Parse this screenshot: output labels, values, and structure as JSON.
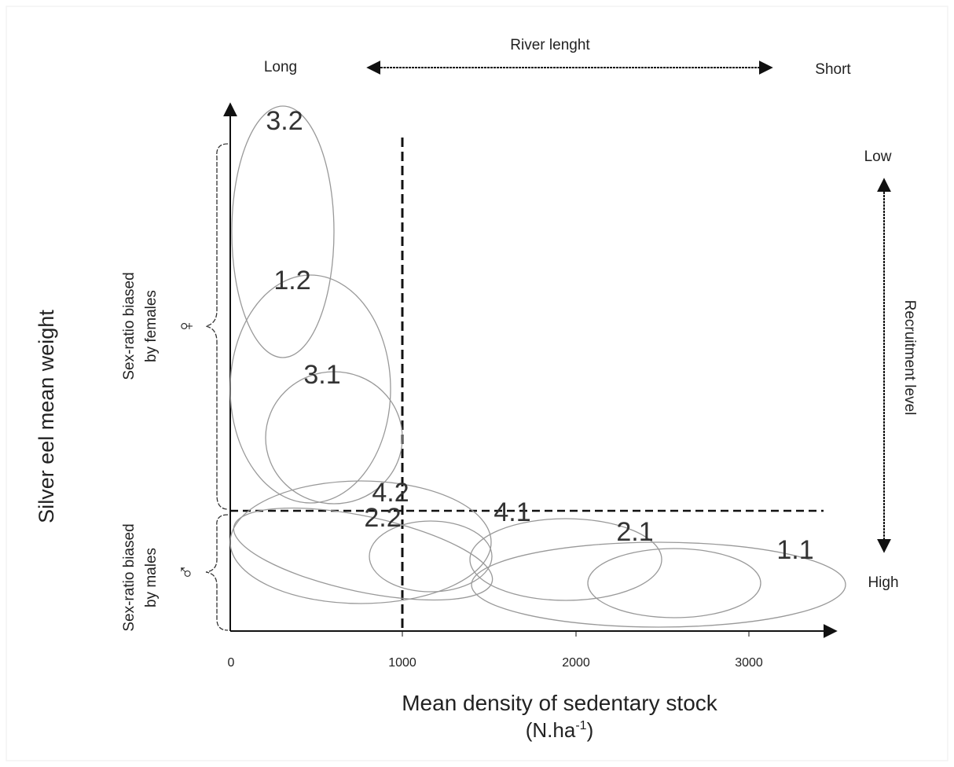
{
  "top_axis": {
    "title": "River lenght",
    "left": "Long",
    "right": "Short"
  },
  "right_axis": {
    "title": "Recruitment level",
    "top": "Low",
    "bottom": "High"
  },
  "y_axis": {
    "title": "Silver eel mean weight",
    "upper": {
      "symbol": "♀",
      "lines": [
        "Sex-ratio biased",
        "by females"
      ]
    },
    "lower": {
      "symbol": "♂",
      "lines": [
        "Sex-ratio biased",
        "by males"
      ]
    }
  },
  "x_axis": {
    "title": "Mean density of sedentary stock",
    "unit": [
      "(N.ha",
      "-1",
      ")"
    ],
    "tick_labels": [
      "0",
      "1000",
      "2000",
      "3000"
    ]
  },
  "ellipses": [
    {
      "label": "3.2"
    },
    {
      "label": "1.2"
    },
    {
      "label": "3.1"
    },
    {
      "label": "4.2"
    },
    {
      "label": "2.2"
    },
    {
      "label": "4.1"
    },
    {
      "label": "2.1"
    },
    {
      "label": "1.1"
    }
  ]
}
